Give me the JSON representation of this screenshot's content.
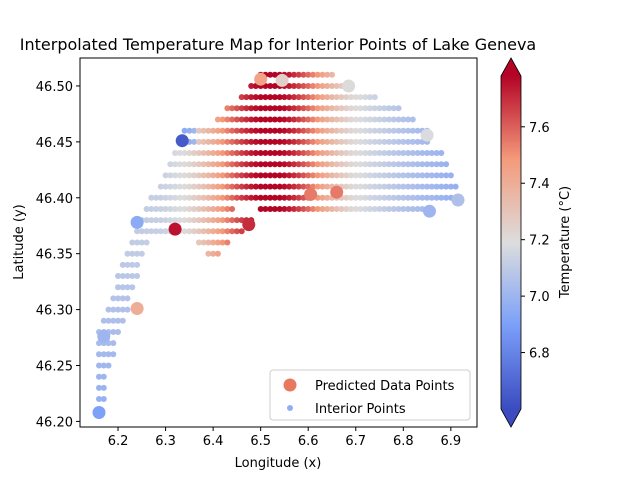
{
  "chart_data": {
    "type": "scatter",
    "title": "Interpolated Temperature Map for Interior Points of Lake Geneva",
    "xlabel": "Longitude (x)",
    "ylabel": "Latitude (y)",
    "xlim": [
      6.12,
      6.955
    ],
    "ylim": [
      46.195,
      46.525
    ],
    "x_ticks": [
      "6.2",
      "6.3",
      "6.4",
      "6.5",
      "6.6",
      "6.7",
      "6.8",
      "6.9"
    ],
    "y_ticks": [
      "46.20",
      "46.25",
      "46.30",
      "46.35",
      "46.40",
      "46.45",
      "46.50"
    ],
    "grid": false,
    "legend_position": "bottom-right",
    "colorbar": {
      "label": "Temperature (°C)",
      "range": [
        6.6,
        7.78
      ],
      "ticks": [
        "6.8",
        "7.0",
        "7.2",
        "7.4",
        "7.6"
      ],
      "colormap": "coolwarm",
      "extend": "both"
    },
    "legend": [
      "Predicted Data Points",
      "Interior Points"
    ],
    "series": [
      {
        "name": "Predicted Data Points",
        "marker": "large-circle",
        "points": [
          {
            "x": 6.16,
            "y": 46.208,
            "t": 6.9
          },
          {
            "x": 6.17,
            "y": 46.276,
            "t": 7.0
          },
          {
            "x": 6.24,
            "y": 46.301,
            "t": 7.4
          },
          {
            "x": 6.24,
            "y": 46.378,
            "t": 6.95
          },
          {
            "x": 6.32,
            "y": 46.372,
            "t": 7.75
          },
          {
            "x": 6.335,
            "y": 46.451,
            "t": 6.65
          },
          {
            "x": 6.475,
            "y": 46.376,
            "t": 7.7
          },
          {
            "x": 6.5,
            "y": 46.506,
            "t": 7.45
          },
          {
            "x": 6.545,
            "y": 46.505,
            "t": 7.25
          },
          {
            "x": 6.605,
            "y": 46.403,
            "t": 7.55
          },
          {
            "x": 6.66,
            "y": 46.405,
            "t": 7.55
          },
          {
            "x": 6.685,
            "y": 46.5,
            "t": 7.2
          },
          {
            "x": 6.85,
            "y": 46.456,
            "t": 7.18
          },
          {
            "x": 6.855,
            "y": 46.388,
            "t": 7.0
          },
          {
            "x": 6.915,
            "y": 46.398,
            "t": 7.05
          }
        ]
      },
      {
        "name": "Interior Points",
        "marker": "small-circle",
        "grid_step": 0.01,
        "rows": [
          {
            "y": 46.51,
            "x_min": 6.5,
            "x_max": 6.65
          },
          {
            "y": 46.5,
            "x_min": 6.48,
            "x_max": 6.68
          },
          {
            "y": 46.49,
            "x_min": 6.46,
            "x_max": 6.74
          },
          {
            "y": 46.48,
            "x_min": 6.43,
            "x_max": 6.79
          },
          {
            "y": 46.47,
            "x_min": 6.41,
            "x_max": 6.82
          },
          {
            "y": 46.46,
            "x_min": 6.34,
            "x_max": 6.85
          },
          {
            "y": 46.45,
            "x_min": 6.33,
            "x_max": 6.85
          },
          {
            "y": 46.44,
            "x_min": 6.32,
            "x_max": 6.88
          },
          {
            "y": 46.43,
            "x_min": 6.31,
            "x_max": 6.89
          },
          {
            "y": 46.42,
            "x_min": 6.3,
            "x_max": 6.9
          },
          {
            "y": 46.41,
            "x_min": 6.29,
            "x_max": 6.91
          },
          {
            "y": 46.4,
            "x_min": 6.27,
            "x_max": 6.6
          },
          {
            "y": 46.39,
            "x_min": 6.26,
            "x_max": 6.44
          },
          {
            "y": 46.38,
            "x_min": 6.25,
            "x_max": 6.48
          },
          {
            "y": 46.37,
            "x_min": 6.24,
            "x_max": 6.46
          },
          {
            "y": 46.36,
            "x_min": 6.23,
            "x_max": 6.26
          },
          {
            "y": 46.35,
            "x_min": 6.22,
            "x_max": 6.25
          },
          {
            "y": 46.34,
            "x_min": 6.21,
            "x_max": 6.24
          },
          {
            "y": 46.33,
            "x_min": 6.2,
            "x_max": 6.24
          },
          {
            "y": 46.32,
            "x_min": 6.2,
            "x_max": 6.23
          },
          {
            "y": 46.31,
            "x_min": 6.19,
            "x_max": 6.22
          },
          {
            "y": 46.3,
            "x_min": 6.18,
            "x_max": 6.22
          },
          {
            "y": 46.29,
            "x_min": 6.17,
            "x_max": 6.21
          },
          {
            "y": 46.28,
            "x_min": 6.16,
            "x_max": 6.2
          },
          {
            "y": 46.27,
            "x_min": 6.16,
            "x_max": 6.19
          },
          {
            "y": 46.26,
            "x_min": 6.16,
            "x_max": 6.19
          },
          {
            "y": 46.25,
            "x_min": 6.16,
            "x_max": 6.18
          },
          {
            "y": 46.24,
            "x_min": 6.16,
            "x_max": 6.17
          },
          {
            "y": 46.23,
            "x_min": 6.16,
            "x_max": 6.17
          },
          {
            "y": 46.22,
            "x_min": 6.16,
            "x_max": 6.17
          },
          {
            "y": 46.21,
            "x_min": 6.16,
            "x_max": 6.16
          }
        ],
        "extra_rows": [
          {
            "y": 46.4,
            "x_min": 6.62,
            "x_max": 6.92
          },
          {
            "y": 46.39,
            "x_min": 6.5,
            "x_max": 6.86
          },
          {
            "y": 46.36,
            "x_min": 6.37,
            "x_max": 6.43
          },
          {
            "y": 46.35,
            "x_min": 6.39,
            "x_max": 6.41
          }
        ]
      }
    ]
  }
}
